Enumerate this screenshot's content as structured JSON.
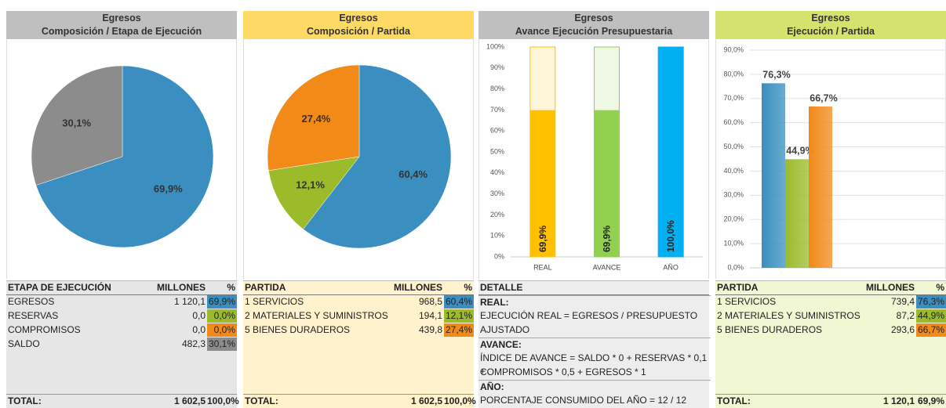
{
  "chart_data": [
    {
      "type": "pie",
      "title": "Egresos",
      "subtitle": "Composición / Etapa de Ejecución",
      "values": [
        69.9,
        30.1
      ],
      "value_labels": [
        "69,9%",
        "30,1%"
      ],
      "colors": [
        "#3a8fc0",
        "#8c8c8c"
      ]
    },
    {
      "type": "pie",
      "title": "Egresos",
      "subtitle": "Composición / Partida",
      "values": [
        60.4,
        12.1,
        27.4
      ],
      "value_labels": [
        "60,4%",
        "12,1%",
        "27,4%"
      ],
      "colors": [
        "#3a8fc0",
        "#9bbb2a",
        "#f28a1a"
      ]
    },
    {
      "type": "bar",
      "title": "Egresos",
      "subtitle": "Avance Ejecución Presupuestaria",
      "categories": [
        "REAL",
        "AVANCE",
        "AÑO"
      ],
      "values": [
        69.9,
        69.9,
        100
      ],
      "value_labels": [
        "69,9%",
        "69,9%",
        "100,0%"
      ],
      "colors": [
        "#ffc000",
        "#92d050",
        "#00b0f0"
      ],
      "ylim": [
        0,
        100
      ],
      "yticks": [
        {
          "value": 0,
          "label": "0%"
        },
        {
          "value": 10,
          "label": "10%"
        },
        {
          "value": 20,
          "label": "20%"
        },
        {
          "value": 30,
          "label": "30%"
        },
        {
          "value": 40,
          "label": "40%"
        },
        {
          "value": 50,
          "label": "50%"
        },
        {
          "value": 60,
          "label": "60%"
        },
        {
          "value": 70,
          "label": "70%"
        },
        {
          "value": 80,
          "label": "80%"
        },
        {
          "value": 90,
          "label": "90%"
        },
        {
          "value": 100,
          "label": "100%"
        }
      ],
      "grid": false
    },
    {
      "type": "bar",
      "title": "Egresos",
      "subtitle": "Ejecución / Partida",
      "values": [
        76.3,
        44.9,
        66.7
      ],
      "value_labels": [
        "76,3%",
        "44,9%",
        "66,7%"
      ],
      "colors": [
        "#3a8fc0",
        "#9bbb2a",
        "#f28a1a"
      ],
      "ylim": [
        0,
        90
      ],
      "yticks": [
        {
          "value": 0,
          "label": "0,0%"
        },
        {
          "value": 10,
          "label": "10,0%"
        },
        {
          "value": 20,
          "label": "20,0%"
        },
        {
          "value": 30,
          "label": "30,0%"
        },
        {
          "value": 40,
          "label": "40,0%"
        },
        {
          "value": 50,
          "label": "50,0%"
        },
        {
          "value": 60,
          "label": "60,0%"
        },
        {
          "value": 70,
          "label": "70,0%"
        },
        {
          "value": 80,
          "label": "80,0%"
        },
        {
          "value": 90,
          "label": "90,0%"
        }
      ],
      "grid": true
    }
  ],
  "tables": [
    {
      "header": [
        "ETAPA DE EJECUCIÓN",
        "MILLONES",
        "%"
      ],
      "rows": [
        [
          "EGRESOS",
          "1 120,1",
          "69,9%"
        ],
        [
          "RESERVAS",
          "0,0",
          "0,0%"
        ],
        [
          "COMPROMISOS",
          "0,0",
          "0,0%"
        ],
        [
          "SALDO",
          "482,3",
          "30,1%"
        ]
      ],
      "cell_colors": [
        "#3a8fc0",
        "#9bbb2a",
        "#f28a1a",
        "#8c8c8c"
      ],
      "total": [
        "TOTAL:",
        "1 602,5",
        "100,0%"
      ]
    },
    {
      "header": [
        "PARTIDA",
        "MILLONES",
        "%"
      ],
      "rows": [
        [
          "1 SERVICIOS",
          "968,5",
          "60,4%"
        ],
        [
          "2 MATERIALES Y SUMINISTROS",
          "194,1",
          "12,1%"
        ],
        [
          "5 BIENES DURADEROS",
          "439,8",
          "27,4%"
        ]
      ],
      "cell_colors": [
        "#3a8fc0",
        "#9bbb2a",
        "#f28a1a"
      ],
      "total": [
        "TOTAL:",
        "1 602,5",
        "100,0%"
      ]
    },
    {
      "header": [
        "DETALLE"
      ],
      "sections": [
        {
          "title": "REAL:",
          "lines": [
            "EJECUCIÓN REAL = EGRESOS / PRESUPUESTO",
            "AJUSTADO"
          ]
        },
        {
          "title": "AVANCE:",
          "lines": [
            "ÍNDICE DE AVANCE = SALDO * 0 + RESERVAS * 0,1 +",
            "COMPROMISOS * 0,5 + EGRESOS * 1"
          ]
        },
        {
          "title": "AÑO:",
          "lines": [
            "PORCENTAJE CONSUMIDO DEL AÑO = 12 / 12"
          ]
        }
      ]
    },
    {
      "header": [
        "PARTIDA",
        "MILLONES",
        "%"
      ],
      "rows": [
        [
          "1 SERVICIOS",
          "739,4",
          "76,3%"
        ],
        [
          "2 MATERIALES Y SUMINISTROS",
          "87,2",
          "44,9%"
        ],
        [
          "5 BIENES DURADEROS",
          "293,6",
          "66,7%"
        ]
      ],
      "cell_colors": [
        "#3a8fc0",
        "#9bbb2a",
        "#f28a1a"
      ],
      "total": [
        "TOTAL:",
        "1 120,1",
        "69,9%"
      ]
    }
  ]
}
